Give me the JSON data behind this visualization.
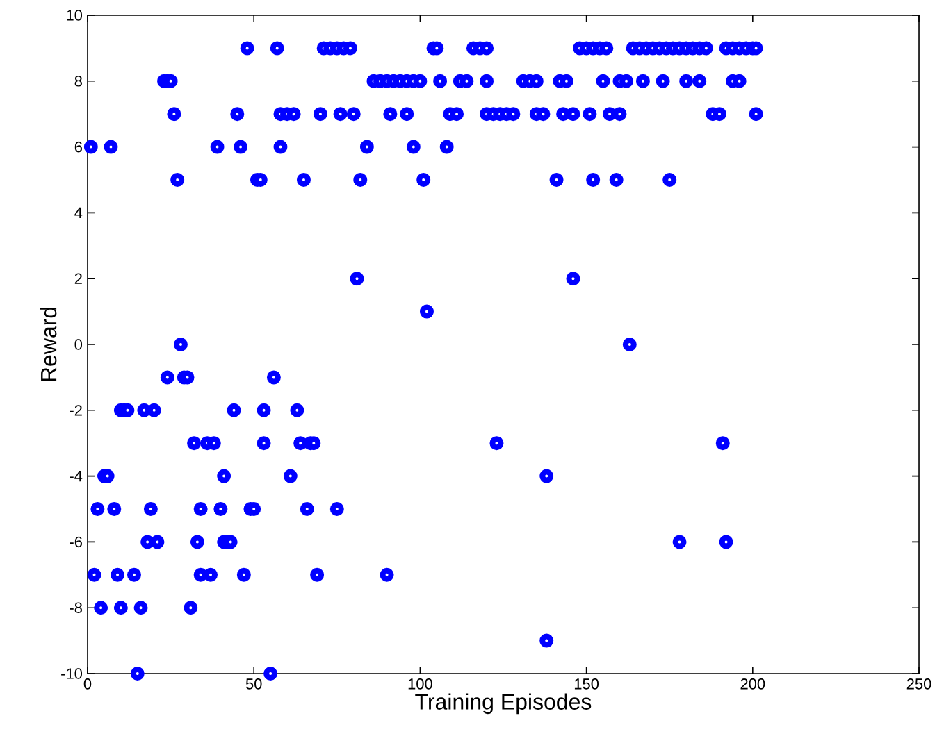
{
  "chart_data": {
    "type": "scatter",
    "xlabel": "Training Episodes",
    "ylabel": "Reward",
    "color": "#0000ff",
    "marker": "circle",
    "xlim": [
      0,
      250
    ],
    "ylim": [
      -10,
      10
    ],
    "xticks": [
      0,
      50,
      100,
      150,
      200,
      250
    ],
    "yticks": [
      -10,
      -8,
      -6,
      -4,
      -2,
      0,
      2,
      4,
      6,
      8,
      10
    ],
    "x": [
      48,
      57,
      71,
      73,
      75,
      77,
      79,
      104,
      105,
      116,
      118,
      120,
      148,
      150,
      152,
      154,
      156,
      164,
      166,
      168,
      170,
      172,
      174,
      176,
      178,
      180,
      182,
      184,
      186,
      192,
      194,
      196,
      198,
      200,
      201,
      23,
      24,
      25,
      86,
      88,
      90,
      92,
      94,
      96,
      98,
      100,
      106,
      112,
      114,
      120,
      131,
      133,
      135,
      142,
      144,
      155,
      160,
      162,
      167,
      173,
      180,
      184,
      194,
      196,
      26,
      45,
      58,
      60,
      62,
      70,
      76,
      80,
      91,
      96,
      109,
      111,
      120,
      122,
      124,
      126,
      128,
      135,
      137,
      143,
      146,
      151,
      157,
      160,
      188,
      190,
      201,
      1,
      7,
      39,
      46,
      58,
      84,
      98,
      108,
      27,
      51,
      52,
      65,
      82,
      101,
      141,
      152,
      159,
      175,
      81,
      146,
      102,
      28,
      163,
      24,
      29,
      30,
      56,
      10,
      11,
      12,
      17,
      20,
      44,
      53,
      63,
      32,
      36,
      38,
      53,
      64,
      67,
      68,
      123,
      191,
      5,
      6,
      41,
      61,
      138,
      3,
      8,
      19,
      34,
      40,
      49,
      50,
      66,
      75,
      18,
      21,
      33,
      41,
      42,
      43,
      178,
      192,
      2,
      9,
      14,
      34,
      37,
      47,
      69,
      90,
      4,
      10,
      16,
      31,
      138,
      15,
      55
    ],
    "values": [
      9,
      9,
      9,
      9,
      9,
      9,
      9,
      9,
      9,
      9,
      9,
      9,
      9,
      9,
      9,
      9,
      9,
      9,
      9,
      9,
      9,
      9,
      9,
      9,
      9,
      9,
      9,
      9,
      9,
      9,
      9,
      9,
      9,
      9,
      9,
      8,
      8,
      8,
      8,
      8,
      8,
      8,
      8,
      8,
      8,
      8,
      8,
      8,
      8,
      8,
      8,
      8,
      8,
      8,
      8,
      8,
      8,
      8,
      8,
      8,
      8,
      8,
      8,
      8,
      7,
      7,
      7,
      7,
      7,
      7,
      7,
      7,
      7,
      7,
      7,
      7,
      7,
      7,
      7,
      7,
      7,
      7,
      7,
      7,
      7,
      7,
      7,
      7,
      7,
      7,
      7,
      6,
      6,
      6,
      6,
      6,
      6,
      6,
      6,
      5,
      5,
      5,
      5,
      5,
      5,
      5,
      5,
      5,
      5,
      2,
      2,
      1,
      0,
      0,
      -1,
      -1,
      -1,
      -1,
      -2,
      -2,
      -2,
      -2,
      -2,
      -2,
      -2,
      -2,
      -3,
      -3,
      -3,
      -3,
      -3,
      -3,
      -3,
      -3,
      -3,
      -4,
      -4,
      -4,
      -4,
      -4,
      -5,
      -5,
      -5,
      -5,
      -5,
      -5,
      -5,
      -5,
      -5,
      -6,
      -6,
      -6,
      -6,
      -6,
      -6,
      -6,
      -6,
      -7,
      -7,
      -7,
      -7,
      -7,
      -7,
      -7,
      -7,
      -8,
      -8,
      -8,
      -8,
      -9,
      -10,
      -10
    ]
  }
}
